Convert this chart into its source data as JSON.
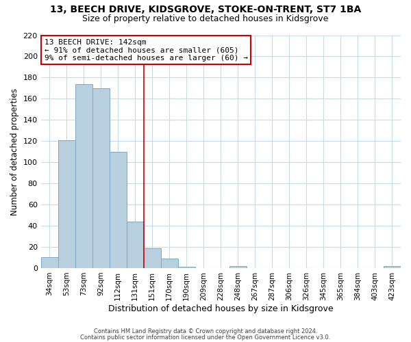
{
  "title1": "13, BEECH DRIVE, KIDSGROVE, STOKE-ON-TRENT, ST7 1BA",
  "title2": "Size of property relative to detached houses in Kidsgrove",
  "xlabel": "Distribution of detached houses by size in Kidsgrove",
  "ylabel": "Number of detached properties",
  "bar_labels": [
    "34sqm",
    "53sqm",
    "73sqm",
    "92sqm",
    "112sqm",
    "131sqm",
    "151sqm",
    "170sqm",
    "190sqm",
    "209sqm",
    "228sqm",
    "248sqm",
    "267sqm",
    "287sqm",
    "306sqm",
    "326sqm",
    "345sqm",
    "365sqm",
    "384sqm",
    "403sqm",
    "423sqm"
  ],
  "bar_values": [
    10,
    121,
    174,
    170,
    110,
    44,
    19,
    9,
    1,
    0,
    0,
    2,
    0,
    0,
    0,
    0,
    0,
    0,
    0,
    0,
    2
  ],
  "bar_color": "#b8cfe0",
  "bar_edge_color": "#7aaac8",
  "vline_x": 5.5,
  "vline_color": "#cc0000",
  "annotation_line1": "13 BEECH DRIVE: 142sqm",
  "annotation_line2": "← 91% of detached houses are smaller (605)",
  "annotation_line3": "9% of semi-detached houses are larger (60) →",
  "annotation_box_color": "#ffffff",
  "annotation_box_edge": "#cc0000",
  "ylim": [
    0,
    220
  ],
  "yticks": [
    0,
    20,
    40,
    60,
    80,
    100,
    120,
    140,
    160,
    180,
    200,
    220
  ],
  "footer1": "Contains HM Land Registry data © Crown copyright and database right 2024.",
  "footer2": "Contains public sector information licensed under the Open Government Licence v3.0.",
  "background_color": "#ffffff",
  "grid_color": "#c8dce8",
  "title1_fontsize": 10,
  "title2_fontsize": 9,
  "ylabel_fontsize": 8.5,
  "xlabel_fontsize": 9,
  "annotation_fontsize": 8,
  "footer_fontsize": 6,
  "tick_fontsize": 7.5,
  "ytick_fontsize": 8
}
